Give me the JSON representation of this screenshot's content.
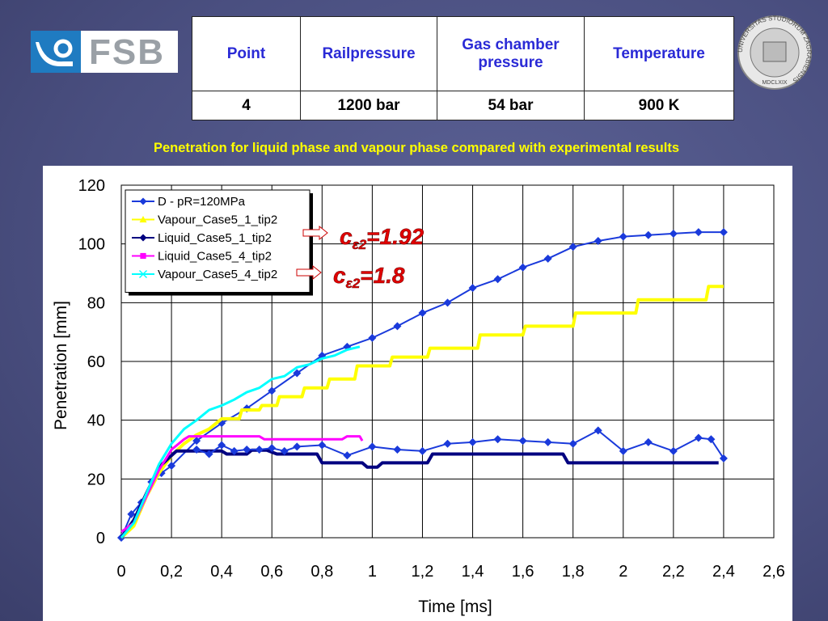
{
  "logo_text": "FSB",
  "seal": {
    "text": "UNIVERSITAS STUDIORUM ZAGRABIENSIS",
    "year": "MDCLXIX"
  },
  "table": {
    "header": [
      "Point",
      "Railpressure",
      "Gas chamber pressure",
      "Temperature"
    ],
    "rows": [
      [
        "4",
        "1200 bar",
        "54 bar",
        "900 K"
      ]
    ]
  },
  "chart_data": {
    "type": "line",
    "title": "Penetration for liquid phase and vapour phase compared with experimental  results",
    "x_label": "Time [ms]",
    "y_label": "Penetration [mm]",
    "xlim": [
      0,
      2.6
    ],
    "xticks": [
      0,
      {
        "value": 0.2,
        "label": "0,2"
      },
      {
        "value": 0.4,
        "label": "0,4"
      },
      {
        "value": 0.6,
        "label": "0,6"
      },
      {
        "value": 0.8,
        "label": "0,8"
      },
      1,
      {
        "value": 1.2,
        "label": "1,2"
      },
      {
        "value": 1.4,
        "label": "1,4"
      },
      {
        "value": 1.6,
        "label": "1,6"
      },
      {
        "value": 1.8,
        "label": "1,8"
      },
      2,
      {
        "value": 2.2,
        "label": "2,2"
      },
      {
        "value": 2.4,
        "label": "2,4"
      },
      {
        "value": 2.6,
        "label": "2,6"
      }
    ],
    "ylim": [
      0,
      120
    ],
    "yticks": [
      0,
      20,
      40,
      60,
      80,
      100,
      120
    ],
    "grid": true,
    "legend": "top-left",
    "annotations": [
      {
        "base": "c",
        "sub": "ε2",
        "rest": "=1.92"
      },
      {
        "base": "c",
        "sub": "ε2",
        "rest": "=1.8"
      }
    ],
    "series": [
      {
        "name": "D - pR=120MPa",
        "color": "#1a3adb",
        "marker": "diamond",
        "x": [
          0,
          0.04,
          0.08,
          0.12,
          0.16,
          0.2,
          0.3,
          0.4,
          0.5,
          0.6,
          0.7,
          0.8,
          0.9,
          1.0,
          1.1,
          1.2,
          1.3,
          1.4,
          1.5,
          1.6,
          1.7,
          1.8,
          1.9,
          2.0,
          2.1,
          2.2,
          2.3,
          2.4
        ],
        "values": [
          0,
          8,
          12,
          19,
          22,
          24.5,
          33,
          39,
          44,
          50,
          56,
          62,
          65,
          68,
          72,
          76.5,
          80,
          85,
          88,
          92,
          95,
          99,
          101,
          102.5,
          103,
          103.5,
          104,
          104
        ]
      },
      {
        "name": "Vapour_Case5_1_tip2",
        "color": "#ffff00",
        "marker": "triangle",
        "x": [
          0,
          0.05,
          0.1,
          0.15,
          0.2,
          0.25,
          0.3,
          0.35,
          0.4,
          0.47,
          0.48,
          0.55,
          0.56,
          0.62,
          0.63,
          0.72,
          0.73,
          0.82,
          0.83,
          0.93,
          0.94,
          1.07,
          1.08,
          1.22,
          1.23,
          1.42,
          1.43,
          1.6,
          1.61,
          1.8,
          1.81,
          2.05,
          2.06,
          2.33,
          2.34,
          2.4
        ],
        "values": [
          0,
          4,
          14,
          22,
          28,
          32,
          35,
          37,
          40.5,
          40.5,
          43.5,
          43.5,
          45,
          45,
          48,
          48,
          51,
          51,
          54,
          54,
          58.5,
          58.5,
          61.5,
          61.5,
          64.5,
          64.5,
          69,
          69,
          72,
          72,
          76.5,
          76.5,
          81,
          81,
          85.5,
          85.5
        ]
      },
      {
        "name": "Liquid_Case5_1_tip2",
        "color": "#000080",
        "marker": "diamond",
        "x": [
          0,
          0.05,
          0.1,
          0.15,
          0.2,
          0.22,
          0.4,
          0.42,
          0.5,
          0.52,
          0.58,
          0.62,
          0.78,
          0.8,
          0.96,
          0.98,
          1.02,
          1.04,
          1.22,
          1.24,
          1.76,
          1.78,
          2.38
        ],
        "values": [
          0,
          6,
          15,
          24,
          28,
          29.5,
          29.5,
          28.5,
          28.5,
          29.8,
          29.8,
          28.5,
          28.5,
          25.5,
          25.5,
          24,
          24,
          25.5,
          25.5,
          28.5,
          28.5,
          25.5,
          25.5
        ]
      },
      {
        "name": "Liquid_Case5_4_tip2",
        "color": "#ff00ff",
        "marker": "square",
        "x": [
          0,
          0.05,
          0.1,
          0.15,
          0.2,
          0.25,
          0.27,
          0.55,
          0.57,
          0.88,
          0.9,
          0.95,
          0.96
        ],
        "values": [
          2,
          5,
          14,
          23,
          30,
          33.5,
          34.5,
          34.5,
          33.5,
          33.5,
          34.5,
          34.5,
          33
        ]
      },
      {
        "name": "Vapour_Case5_4_tip2",
        "color": "#00ffff",
        "marker": "x",
        "x": [
          0,
          0.05,
          0.1,
          0.15,
          0.2,
          0.25,
          0.3,
          0.35,
          0.4,
          0.45,
          0.5,
          0.55,
          0.6,
          0.65,
          0.7,
          0.75,
          0.8,
          0.85,
          0.9,
          0.95
        ],
        "values": [
          0,
          5,
          15,
          25,
          32,
          37,
          40,
          43.5,
          45,
          47,
          49.5,
          51,
          54,
          55,
          58,
          59,
          61,
          62,
          64,
          65
        ]
      },
      {
        "color": "#1a3adb",
        "marker": "diamond",
        "x": [
          0.3,
          0.35,
          0.4,
          0.45,
          0.5,
          0.55,
          0.6,
          0.65,
          0.7,
          0.8,
          0.9,
          1.0,
          1.1,
          1.2,
          1.3,
          1.4,
          1.5,
          1.6,
          1.7,
          1.8,
          1.9,
          2.0,
          2.1,
          2.2,
          2.3,
          2.35,
          2.4
        ],
        "values": [
          30,
          28.5,
          31.5,
          29.5,
          30,
          30,
          30.5,
          29.5,
          31,
          31.5,
          28,
          31,
          30,
          29.5,
          32,
          32.5,
          33.5,
          33,
          32.5,
          32,
          36.5,
          29.5,
          32.5,
          29.5,
          34,
          33.5,
          27
        ]
      }
    ]
  }
}
